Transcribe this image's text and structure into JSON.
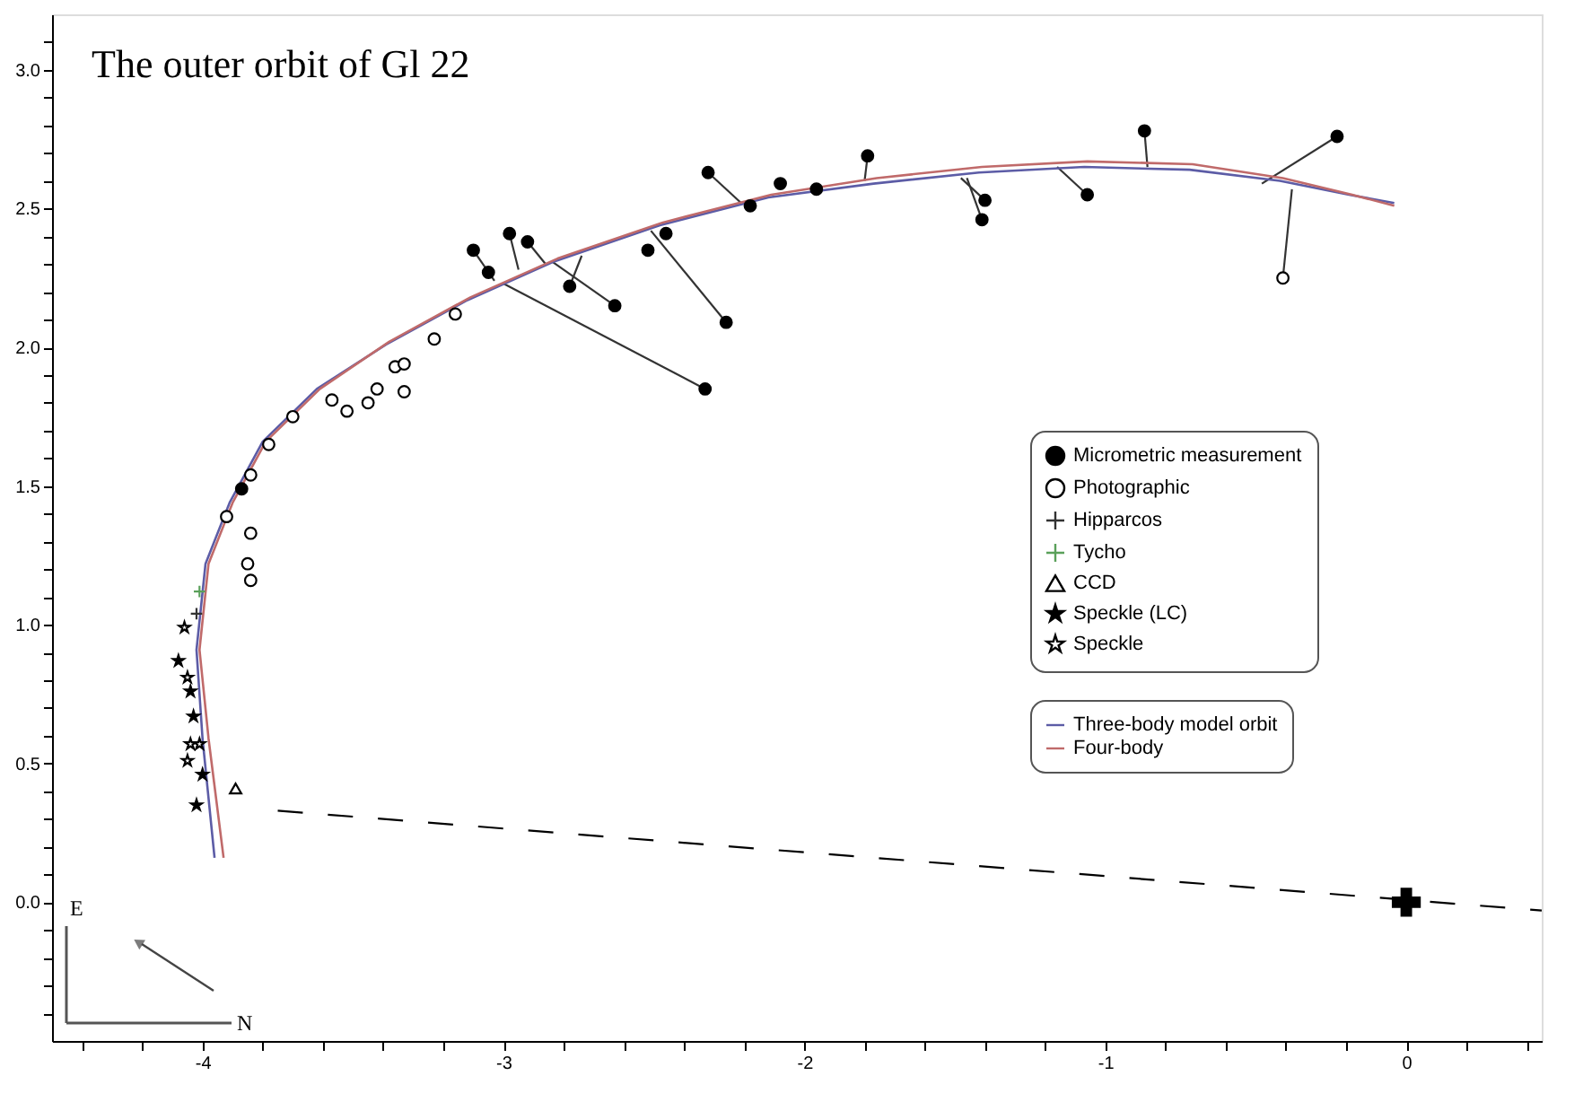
{
  "chart_data": {
    "type": "scatter",
    "title": "The outer orbit of Gl 22",
    "annotations": [
      "E",
      "N"
    ],
    "xlim": [
      -4.5,
      0.45
    ],
    "ylim": [
      -0.5,
      3.2
    ],
    "xticks": [
      {
        "value": -4.4,
        "label": null
      },
      {
        "value": -4.2,
        "label": null
      },
      -4,
      {
        "value": -3.8,
        "label": null
      },
      {
        "value": -3.6,
        "label": null
      },
      {
        "value": -3.4,
        "label": null
      },
      {
        "value": -3.2,
        "label": null
      },
      -3,
      {
        "value": -2.8,
        "label": null
      },
      {
        "value": -2.6,
        "label": null
      },
      {
        "value": -2.4,
        "label": null
      },
      {
        "value": -2.2,
        "label": null
      },
      -2,
      {
        "value": -1.8,
        "label": null
      },
      {
        "value": -1.6,
        "label": null
      },
      {
        "value": -1.4,
        "label": null
      },
      {
        "value": -1.2,
        "label": null
      },
      -1,
      {
        "value": -0.8,
        "label": null
      },
      {
        "value": -0.6,
        "label": null
      },
      {
        "value": -0.4,
        "label": null
      },
      {
        "value": -0.2,
        "label": null
      },
      0,
      {
        "value": 0.2,
        "label": null
      },
      {
        "value": 0.4,
        "label": null
      }
    ],
    "yticks": [
      {
        "value": -0.4,
        "label": null
      },
      {
        "value": -0.3,
        "label": null
      },
      {
        "value": -0.2,
        "label": null
      },
      {
        "value": -0.1,
        "label": null
      },
      {
        "value": 0,
        "label": "0.0"
      },
      {
        "value": 0.1,
        "label": null
      },
      {
        "value": 0.2,
        "label": null
      },
      {
        "value": 0.3,
        "label": null
      },
      {
        "value": 0.4,
        "label": null
      },
      0.5,
      {
        "value": 0.6,
        "label": null
      },
      {
        "value": 0.7,
        "label": null
      },
      {
        "value": 0.8,
        "label": null
      },
      {
        "value": 0.9,
        "label": null
      },
      {
        "value": 1,
        "label": "1.0"
      },
      {
        "value": 1.1,
        "label": null
      },
      {
        "value": 1.2,
        "label": null
      },
      {
        "value": 1.3,
        "label": null
      },
      {
        "value": 1.4,
        "label": null
      },
      1.5,
      {
        "value": 1.6,
        "label": null
      },
      {
        "value": 1.7,
        "label": null
      },
      {
        "value": 1.8,
        "label": null
      },
      {
        "value": 1.9,
        "label": null
      },
      {
        "value": 2,
        "label": "2.0"
      },
      {
        "value": 2.1,
        "label": null
      },
      {
        "value": 2.2,
        "label": null
      },
      {
        "value": 2.3,
        "label": null
      },
      {
        "value": 2.4,
        "label": null
      },
      2.5,
      {
        "value": 2.6,
        "label": null
      },
      {
        "value": 2.7,
        "label": null
      },
      {
        "value": 2.8,
        "label": null
      },
      {
        "value": 2.9,
        "label": null
      },
      {
        "value": 3,
        "label": "3.0"
      },
      {
        "value": 3.1,
        "label": null
      }
    ],
    "grid": false,
    "legend": "right",
    "series": [
      {
        "type": "line",
        "color": "#000000",
        "line_style": "dashed",
        "x": [
          -3.75,
          0.45
        ],
        "values": [
          0.33,
          -0.03
        ]
      },
      {
        "type": "line",
        "name": "Three-body model orbit",
        "color": "#5c5ca6",
        "line_style": "solid",
        "x": [
          -3.96,
          -4.0,
          -4.02,
          -3.99,
          -3.91,
          -3.8,
          -3.62,
          -3.39,
          -3.12,
          -2.83,
          -2.48,
          -2.12,
          -1.77,
          -1.42,
          -1.07,
          -0.72,
          -0.42,
          -0.19,
          -0.04
        ],
        "values": [
          0.16,
          0.59,
          0.91,
          1.22,
          1.44,
          1.66,
          1.85,
          2.01,
          2.17,
          2.31,
          2.44,
          2.54,
          2.59,
          2.63,
          2.65,
          2.64,
          2.6,
          2.55,
          2.52
        ]
      },
      {
        "type": "line",
        "name": "Four-body",
        "color": "#c06a6a",
        "line_style": "solid",
        "x": [
          -3.93,
          -3.98,
          -4.01,
          -3.98,
          -3.9,
          -3.79,
          -3.61,
          -3.38,
          -3.11,
          -2.82,
          -2.47,
          -2.11,
          -1.76,
          -1.41,
          -1.06,
          -0.71,
          -0.41,
          -0.18,
          -0.04
        ],
        "values": [
          0.16,
          0.59,
          0.91,
          1.22,
          1.44,
          1.66,
          1.85,
          2.02,
          2.18,
          2.32,
          2.45,
          2.55,
          2.61,
          2.65,
          2.67,
          2.66,
          2.61,
          2.55,
          2.51
        ]
      },
      {
        "type": "line",
        "color": "#333333",
        "line_style": "solid",
        "x": [
          -3.1,
          -3.03,
          null,
          -2.98,
          -2.95,
          null,
          -2.92,
          -2.86,
          null,
          -2.33,
          -3.0,
          null,
          -2.63,
          -2.84,
          null,
          -2.78,
          -2.74,
          null,
          -2.26,
          -2.51,
          null,
          -2.32,
          -2.21,
          null,
          -1.79,
          -1.8,
          null,
          -1.4,
          -1.48,
          null,
          -1.41,
          -1.46,
          null,
          -1.06,
          -1.16,
          null,
          -0.87,
          -0.86,
          null,
          -0.23,
          -0.48,
          null,
          -0.41,
          -0.38
        ],
        "values": [
          2.35,
          2.24,
          null,
          2.41,
          2.28,
          null,
          2.38,
          2.3,
          null,
          1.85,
          2.23,
          null,
          2.15,
          2.31,
          null,
          2.22,
          2.33,
          null,
          2.09,
          2.42,
          null,
          2.63,
          2.52,
          null,
          2.69,
          2.6,
          null,
          2.53,
          2.61,
          null,
          2.46,
          2.61,
          null,
          2.55,
          2.65,
          null,
          2.78,
          2.65,
          null,
          2.76,
          2.59,
          null,
          2.25,
          2.57
        ]
      },
      {
        "name": "Micrometric measurement",
        "color": "#000000",
        "marker": "circle",
        "x": [
          -3.1,
          -3.05,
          -2.98,
          -2.92,
          -2.78,
          -2.63,
          -2.52,
          -2.46,
          -2.33,
          -2.26,
          -2.32,
          -2.18,
          -2.08,
          -1.96,
          -1.79,
          -1.4,
          -1.41,
          -1.06,
          -0.87,
          -0.23,
          -3.87
        ],
        "values": [
          2.35,
          2.27,
          2.41,
          2.38,
          2.22,
          2.15,
          2.35,
          2.41,
          1.85,
          2.09,
          2.63,
          2.51,
          2.59,
          2.57,
          2.69,
          2.53,
          2.46,
          2.55,
          2.78,
          2.76,
          1.49
        ]
      },
      {
        "name": "Photographic",
        "color": "#000000",
        "marker": "circle",
        "x": [
          -3.92,
          -3.84,
          -3.78,
          -3.7,
          -3.57,
          -3.52,
          -3.45,
          -3.42,
          -3.36,
          -3.33,
          -3.23,
          -3.16,
          -3.84,
          -3.85,
          -3.84,
          -0.41,
          -3.33
        ],
        "values": [
          1.39,
          1.54,
          1.65,
          1.75,
          1.81,
          1.77,
          1.8,
          1.85,
          1.93,
          1.94,
          2.03,
          2.12,
          1.33,
          1.22,
          1.16,
          2.25,
          1.84
        ]
      },
      {
        "name": "Hipparcos",
        "color": "#333333",
        "marker": "cross",
        "x": [
          -4.02
        ],
        "values": [
          1.04
        ]
      },
      {
        "name": "Tycho",
        "color": "#5aa05a",
        "marker": "cross",
        "x": [
          -4.01
        ],
        "values": [
          1.12
        ]
      },
      {
        "name": "CCD",
        "color": "#000000",
        "marker": "triangle",
        "x": [
          -3.89
        ],
        "values": [
          0.41
        ]
      },
      {
        "name": "Speckle (LC)",
        "color": "#000000",
        "marker": "star",
        "x": [
          -4.08,
          -4.04,
          -4.0,
          -4.02,
          -4.03
        ],
        "values": [
          0.87,
          0.76,
          0.46,
          0.35,
          0.67
        ]
      },
      {
        "name": "Speckle",
        "color": "#000000",
        "marker": "star",
        "x": [
          -4.06,
          -4.05,
          -4.04,
          -4.01,
          -4.05
        ],
        "values": [
          0.99,
          0.81,
          0.57,
          0.57,
          0.51
        ]
      },
      {
        "color": "#000000",
        "marker": "cross",
        "x": [
          0
        ],
        "values": [
          0
        ]
      }
    ]
  }
}
